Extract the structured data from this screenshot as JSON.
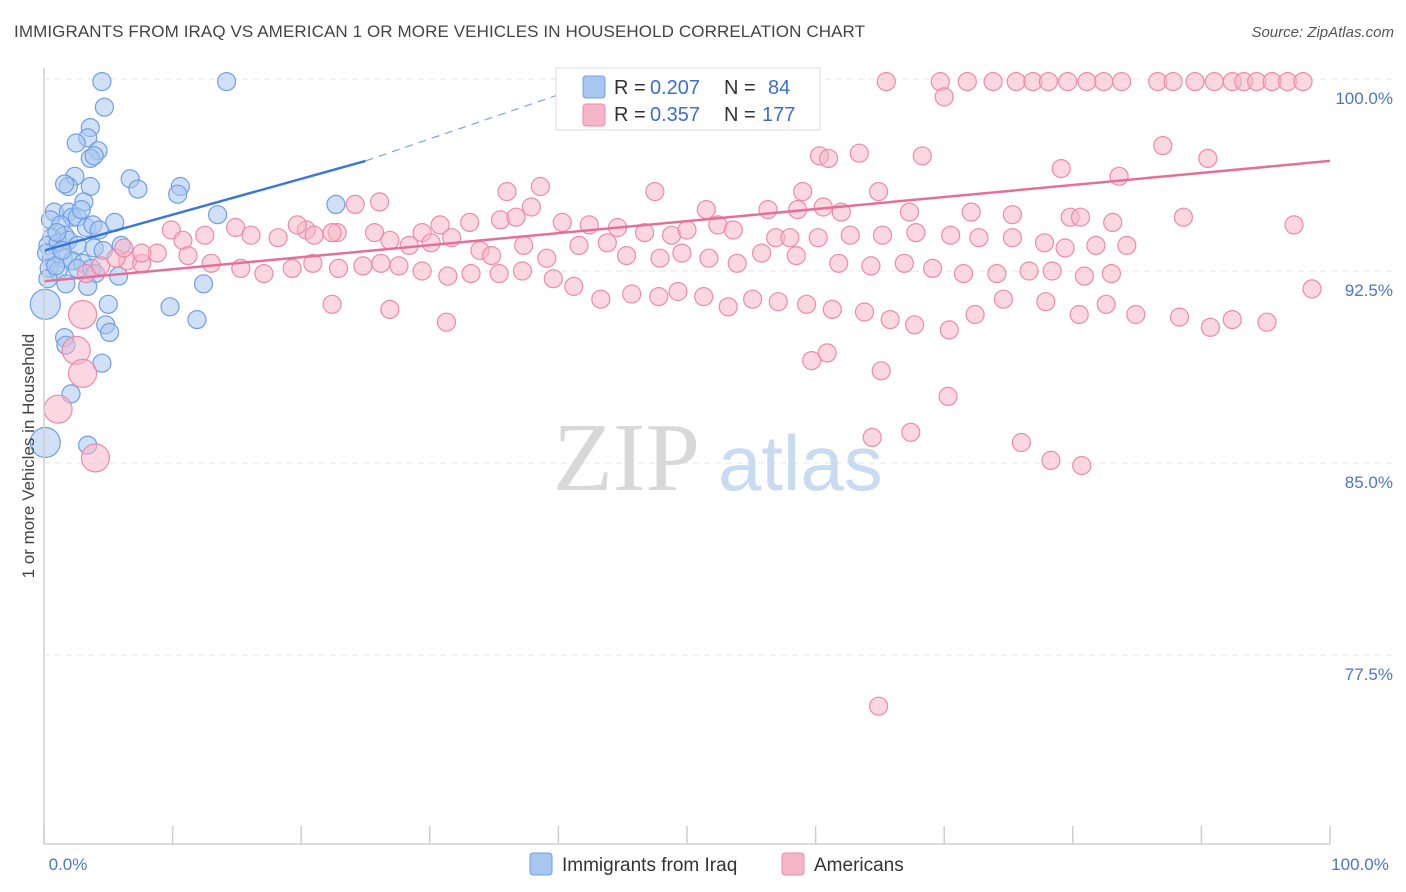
{
  "header": {
    "title": "IMMIGRANTS FROM IRAQ VS AMERICAN 1 OR MORE VEHICLES IN HOUSEHOLD CORRELATION CHART",
    "source": "Source: ZipAtlas.com"
  },
  "watermark": {
    "zip": "ZIP",
    "atlas": "atlas"
  },
  "legend": {
    "rows": [
      {
        "r_label": "R = ",
        "r_value": "0.207",
        "n_label": "N = ",
        "n_value": "84",
        "color": "#a9c6f0"
      },
      {
        "r_label": "R = ",
        "r_value": "0.357",
        "n_label": "N = ",
        "n_value": "177",
        "color": "#f5b6c9"
      }
    ]
  },
  "chart_data": {
    "type": "scatter",
    "xlabel": "",
    "ylabel": "1 or more Vehicles in Household",
    "xlim": [
      0,
      100
    ],
    "ylim": [
      70,
      100.5
    ],
    "x_tick_labels": [
      "0.0%",
      "100.0%"
    ],
    "y_ticks": [
      77.5,
      85.0,
      92.5,
      100.0
    ],
    "y_tick_labels": [
      "77.5%",
      "85.0%",
      "92.5%",
      "100.0%"
    ],
    "grid": true,
    "legend_position": "bottom",
    "series": [
      {
        "name": "Immigrants from Iraq",
        "color": "#6f9fe3",
        "fill": "#a9c6f0",
        "trend": {
          "x": [
            0,
            25
          ],
          "y": [
            93.3,
            96.8
          ],
          "dashed_to": [
            43,
            99.9
          ]
        },
        "points": [
          [
            4.5,
            99.9
          ],
          [
            14.2,
            99.9
          ],
          [
            4.7,
            98.9
          ],
          [
            3.6,
            98.1
          ],
          [
            3.4,
            97.7
          ],
          [
            2.5,
            97.5
          ],
          [
            4.2,
            97.2
          ],
          [
            3.6,
            96.9
          ],
          [
            3.9,
            97.0
          ],
          [
            2.4,
            96.2
          ],
          [
            1.9,
            95.8
          ],
          [
            3.6,
            95.8
          ],
          [
            6.7,
            96.1
          ],
          [
            7.3,
            95.7
          ],
          [
            10.6,
            95.8
          ],
          [
            10.4,
            95.5
          ],
          [
            1.6,
            95.9
          ],
          [
            3.1,
            95.2
          ],
          [
            0.8,
            94.8
          ],
          [
            1.9,
            94.8
          ],
          [
            2.2,
            94.6
          ],
          [
            2.6,
            94.6
          ],
          [
            0.5,
            94.5
          ],
          [
            1.3,
            94.3
          ],
          [
            3.3,
            94.2
          ],
          [
            3.8,
            94.3
          ],
          [
            5.5,
            94.4
          ],
          [
            4.3,
            94.1
          ],
          [
            13.5,
            94.7
          ],
          [
            22.7,
            95.1
          ],
          [
            0.6,
            93.8
          ],
          [
            1.6,
            93.9
          ],
          [
            0.3,
            93.5
          ],
          [
            1.1,
            93.6
          ],
          [
            1.9,
            93.7
          ],
          [
            2.6,
            93.5
          ],
          [
            3.9,
            93.4
          ],
          [
            4.6,
            93.3
          ],
          [
            6.0,
            93.5
          ],
          [
            0.2,
            93.2
          ],
          [
            0.6,
            93.0
          ],
          [
            1.5,
            93.0
          ],
          [
            2.2,
            92.9
          ],
          [
            3.0,
            92.8
          ],
          [
            0.4,
            92.6
          ],
          [
            1.1,
            92.5
          ],
          [
            2.6,
            92.6
          ],
          [
            3.7,
            92.6
          ],
          [
            4.0,
            92.4
          ],
          [
            5.8,
            92.3
          ],
          [
            0.3,
            92.2
          ],
          [
            1.7,
            92.0
          ],
          [
            3.4,
            91.9
          ],
          [
            12.4,
            92.0
          ],
          [
            0.1,
            91.2
          ],
          [
            5.0,
            91.2
          ],
          [
            9.8,
            91.1
          ],
          [
            11.9,
            90.6
          ],
          [
            4.8,
            90.4
          ],
          [
            5.1,
            90.1
          ],
          [
            1.6,
            89.9
          ],
          [
            1.7,
            89.6
          ],
          [
            4.5,
            88.9
          ],
          [
            2.1,
            87.7
          ],
          [
            3.4,
            85.7
          ],
          [
            0.1,
            85.8
          ],
          [
            1.0,
            94.0
          ],
          [
            2.9,
            94.9
          ],
          [
            0.9,
            92.7
          ],
          [
            1.4,
            93.3
          ]
        ]
      },
      {
        "name": "Americans",
        "color": "#ee8aa9",
        "fill": "#f5b6c9",
        "trend": {
          "x": [
            0,
            100
          ],
          "y": [
            92.1,
            96.8
          ]
        },
        "points": [
          [
            65.5,
            99.9
          ],
          [
            69.7,
            99.9
          ],
          [
            71.8,
            99.9
          ],
          [
            73.8,
            99.9
          ],
          [
            75.6,
            99.9
          ],
          [
            76.9,
            99.9
          ],
          [
            78.1,
            99.9
          ],
          [
            79.6,
            99.9
          ],
          [
            81.1,
            99.9
          ],
          [
            82.4,
            99.9
          ],
          [
            83.8,
            99.9
          ],
          [
            86.6,
            99.9
          ],
          [
            87.8,
            99.9
          ],
          [
            89.5,
            99.9
          ],
          [
            91.0,
            99.9
          ],
          [
            92.4,
            99.9
          ],
          [
            93.3,
            99.9
          ],
          [
            94.3,
            99.9
          ],
          [
            95.5,
            99.9
          ],
          [
            96.7,
            99.9
          ],
          [
            97.9,
            99.9
          ],
          [
            70.0,
            99.3
          ],
          [
            54.1,
            98.8
          ],
          [
            87.0,
            97.4
          ],
          [
            90.5,
            96.9
          ],
          [
            60.3,
            97.0
          ],
          [
            61.0,
            96.9
          ],
          [
            63.4,
            97.1
          ],
          [
            68.3,
            97.0
          ],
          [
            79.1,
            96.5
          ],
          [
            83.6,
            96.2
          ],
          [
            36.0,
            95.6
          ],
          [
            38.6,
            95.8
          ],
          [
            47.5,
            95.6
          ],
          [
            59.0,
            95.6
          ],
          [
            64.9,
            95.6
          ],
          [
            24.2,
            95.1
          ],
          [
            26.1,
            95.2
          ],
          [
            37.9,
            95.0
          ],
          [
            51.5,
            94.9
          ],
          [
            56.3,
            94.9
          ],
          [
            58.6,
            94.9
          ],
          [
            60.6,
            95.0
          ],
          [
            62.0,
            94.8
          ],
          [
            67.3,
            94.8
          ],
          [
            72.1,
            94.8
          ],
          [
            75.3,
            94.7
          ],
          [
            79.8,
            94.6
          ],
          [
            80.6,
            94.6
          ],
          [
            83.1,
            94.4
          ],
          [
            88.6,
            94.6
          ],
          [
            97.2,
            94.3
          ],
          [
            20.4,
            94.1
          ],
          [
            22.8,
            94.0
          ],
          [
            25.7,
            94.0
          ],
          [
            29.4,
            94.0
          ],
          [
            30.8,
            94.3
          ],
          [
            33.1,
            94.4
          ],
          [
            35.5,
            94.5
          ],
          [
            36.7,
            94.6
          ],
          [
            40.3,
            94.4
          ],
          [
            42.4,
            94.3
          ],
          [
            44.6,
            94.2
          ],
          [
            46.7,
            94.0
          ],
          [
            48.8,
            93.9
          ],
          [
            50.0,
            94.1
          ],
          [
            52.4,
            94.3
          ],
          [
            53.6,
            94.1
          ],
          [
            56.9,
            93.8
          ],
          [
            58.0,
            93.8
          ],
          [
            60.2,
            93.8
          ],
          [
            62.7,
            93.9
          ],
          [
            65.2,
            93.9
          ],
          [
            67.8,
            94.0
          ],
          [
            70.5,
            93.9
          ],
          [
            72.7,
            93.8
          ],
          [
            75.3,
            93.8
          ],
          [
            77.8,
            93.6
          ],
          [
            79.4,
            93.4
          ],
          [
            81.8,
            93.5
          ],
          [
            84.2,
            93.5
          ],
          [
            9.9,
            94.1
          ],
          [
            10.8,
            93.7
          ],
          [
            12.5,
            93.9
          ],
          [
            14.9,
            94.2
          ],
          [
            16.1,
            93.9
          ],
          [
            18.2,
            93.8
          ],
          [
            19.7,
            94.3
          ],
          [
            21.0,
            93.9
          ],
          [
            22.4,
            94.0
          ],
          [
            26.9,
            93.7
          ],
          [
            28.4,
            93.5
          ],
          [
            30.1,
            93.6
          ],
          [
            31.7,
            93.8
          ],
          [
            33.9,
            93.3
          ],
          [
            34.8,
            93.1
          ],
          [
            37.3,
            93.5
          ],
          [
            39.1,
            93.0
          ],
          [
            41.6,
            93.5
          ],
          [
            43.8,
            93.6
          ],
          [
            45.3,
            93.1
          ],
          [
            47.9,
            93.0
          ],
          [
            49.6,
            93.2
          ],
          [
            51.7,
            93.0
          ],
          [
            53.9,
            92.8
          ],
          [
            55.8,
            93.2
          ],
          [
            58.5,
            93.1
          ],
          [
            61.8,
            92.8
          ],
          [
            64.3,
            92.7
          ],
          [
            66.9,
            92.8
          ],
          [
            69.1,
            92.6
          ],
          [
            71.5,
            92.4
          ],
          [
            74.1,
            92.4
          ],
          [
            76.6,
            92.5
          ],
          [
            78.4,
            92.5
          ],
          [
            80.9,
            92.3
          ],
          [
            83.0,
            92.4
          ],
          [
            6.5,
            92.9
          ],
          [
            7.6,
            92.8
          ],
          [
            8.8,
            93.2
          ],
          [
            11.2,
            93.1
          ],
          [
            13.0,
            92.8
          ],
          [
            15.3,
            92.6
          ],
          [
            17.1,
            92.4
          ],
          [
            19.3,
            92.6
          ],
          [
            20.9,
            92.8
          ],
          [
            22.9,
            92.6
          ],
          [
            24.8,
            92.7
          ],
          [
            26.2,
            92.8
          ],
          [
            27.6,
            92.7
          ],
          [
            29.4,
            92.5
          ],
          [
            31.4,
            92.3
          ],
          [
            33.2,
            92.4
          ],
          [
            35.4,
            92.4
          ],
          [
            37.2,
            92.5
          ],
          [
            39.6,
            92.2
          ],
          [
            41.2,
            91.9
          ],
          [
            43.3,
            91.4
          ],
          [
            45.7,
            91.6
          ],
          [
            47.8,
            91.5
          ],
          [
            49.3,
            91.7
          ],
          [
            51.3,
            91.5
          ],
          [
            53.2,
            91.1
          ],
          [
            55.1,
            91.4
          ],
          [
            57.1,
            91.3
          ],
          [
            59.3,
            91.2
          ],
          [
            61.3,
            91.0
          ],
          [
            63.8,
            90.9
          ],
          [
            65.8,
            90.6
          ],
          [
            67.7,
            90.4
          ],
          [
            70.4,
            90.2
          ],
          [
            72.4,
            90.8
          ],
          [
            74.6,
            91.4
          ],
          [
            77.9,
            91.3
          ],
          [
            80.5,
            90.8
          ],
          [
            82.6,
            91.2
          ],
          [
            84.9,
            90.8
          ],
          [
            88.3,
            90.7
          ],
          [
            90.7,
            90.3
          ],
          [
            92.4,
            90.6
          ],
          [
            95.1,
            90.5
          ],
          [
            98.6,
            91.8
          ],
          [
            3.3,
            92.4
          ],
          [
            4.4,
            92.7
          ],
          [
            5.6,
            93.0
          ],
          [
            6.2,
            93.4
          ],
          [
            7.6,
            93.2
          ],
          [
            3.0,
            90.8
          ],
          [
            2.5,
            89.4
          ],
          [
            3.0,
            88.5
          ],
          [
            1.1,
            87.1
          ],
          [
            4.0,
            85.2
          ],
          [
            59.7,
            89.0
          ],
          [
            60.9,
            89.3
          ],
          [
            65.1,
            88.6
          ],
          [
            70.3,
            87.6
          ],
          [
            76.0,
            85.8
          ],
          [
            78.3,
            85.1
          ],
          [
            80.7,
            84.9
          ],
          [
            67.4,
            86.2
          ],
          [
            64.4,
            86.0
          ],
          [
            64.9,
            75.5
          ],
          [
            22.4,
            91.2
          ],
          [
            26.9,
            91.0
          ],
          [
            31.3,
            90.5
          ]
        ]
      }
    ]
  },
  "bottom_legend": {
    "items": [
      {
        "label": "Immigrants from Iraq",
        "color": "#a9c6f0"
      },
      {
        "label": "Americans",
        "color": "#f5b6c9"
      }
    ]
  }
}
